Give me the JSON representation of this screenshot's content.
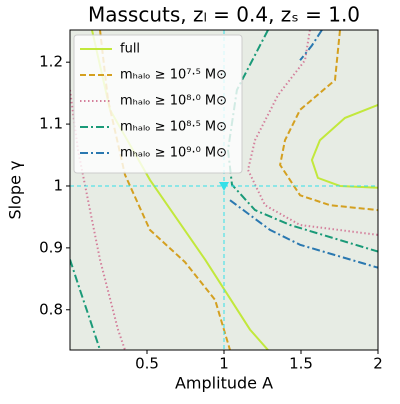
{
  "chart_data": {
    "type": "contour",
    "title": "Masscuts, zₗ = 0.4, zₛ = 1.0",
    "x_label": "Amplitude A",
    "y_label": "Slope γ",
    "xlim": [
      0,
      2.0
    ],
    "ylim": [
      0.735,
      1.252
    ],
    "xticks": [
      0.5,
      1.0,
      1.5,
      2.0
    ],
    "yticks": [
      0.8,
      0.9,
      1.0,
      1.1,
      1.2
    ],
    "legend": "upper left",
    "reference": {
      "x": 1.0,
      "y": 1.0,
      "color": "#33e0e8"
    },
    "series": [
      {
        "name": "full",
        "color": "#c2e83c",
        "linestyle": "solid",
        "x": [
          0.143,
          0.26,
          0.519,
          0.877,
          1.169,
          1.286,
          null,
          2.0,
          1.786,
          1.623,
          1.571,
          1.61,
          1.753,
          2.0
        ],
        "y": [
          1.252,
          1.123,
          1.01,
          0.881,
          0.768,
          0.735,
          null,
          1.131,
          1.11,
          1.074,
          1.042,
          1.013,
          1.0,
          0.997
        ]
      },
      {
        "name": "mₕₐₗₒ ≥ 10⁷·⁵ M⊙",
        "color": "#d4a020",
        "linestyle": "dashed",
        "x": [
          0.195,
          0.247,
          0.357,
          0.519,
          0.747,
          0.942,
          1.039,
          null,
          1.753,
          1.721,
          1.494,
          1.396,
          1.364,
          1.494,
          1.688,
          2.0
        ],
        "y": [
          1.252,
          1.139,
          1.018,
          0.929,
          0.877,
          0.816,
          0.735,
          null,
          1.252,
          1.171,
          1.123,
          1.074,
          1.034,
          0.985,
          0.969,
          0.961
        ]
      },
      {
        "name": "mₕₐₗₒ ≥ 10⁸·⁰ M⊙",
        "color": "#d4809c",
        "linestyle": "dotted",
        "x": [
          0,
          0.052,
          0.13,
          0.195,
          0.312,
          0.357,
          null,
          1.558,
          1.526,
          1.351,
          1.201,
          1.156,
          1.266,
          1.494,
          2.0
        ],
        "y": [
          1.155,
          1.058,
          0.961,
          0.881,
          0.768,
          0.735,
          null,
          1.252,
          1.203,
          1.147,
          1.074,
          1.026,
          0.969,
          0.937,
          0.921
        ]
      },
      {
        "name": "mₕₐₗₒ ≥ 10⁸·⁵ M⊙",
        "color": "#1a9a78",
        "linestyle": "dashdot",
        "x": [
          0,
          0.065,
          0.13,
          0.195,
          null,
          1.286,
          1.084,
          1.026,
          1.052,
          1.201,
          1.429,
          2.0
        ],
        "y": [
          0.881,
          0.832,
          0.784,
          0.735,
          null,
          1.252,
          1.155,
          1.058,
          1.002,
          0.961,
          0.937,
          0.894
        ]
      },
      {
        "name": "mₕₐₗₒ ≥ 10⁹·⁰ M⊙",
        "color": "#2a78b0",
        "linestyle": "dashdot",
        "x": [
          1.636,
          1.571,
          1.494,
          null,
          1.039,
          1.299,
          1.494,
          2.0
        ],
        "y": [
          1.252,
          1.227,
          1.203,
          null,
          0.977,
          0.929,
          0.905,
          0.868
        ]
      }
    ]
  }
}
